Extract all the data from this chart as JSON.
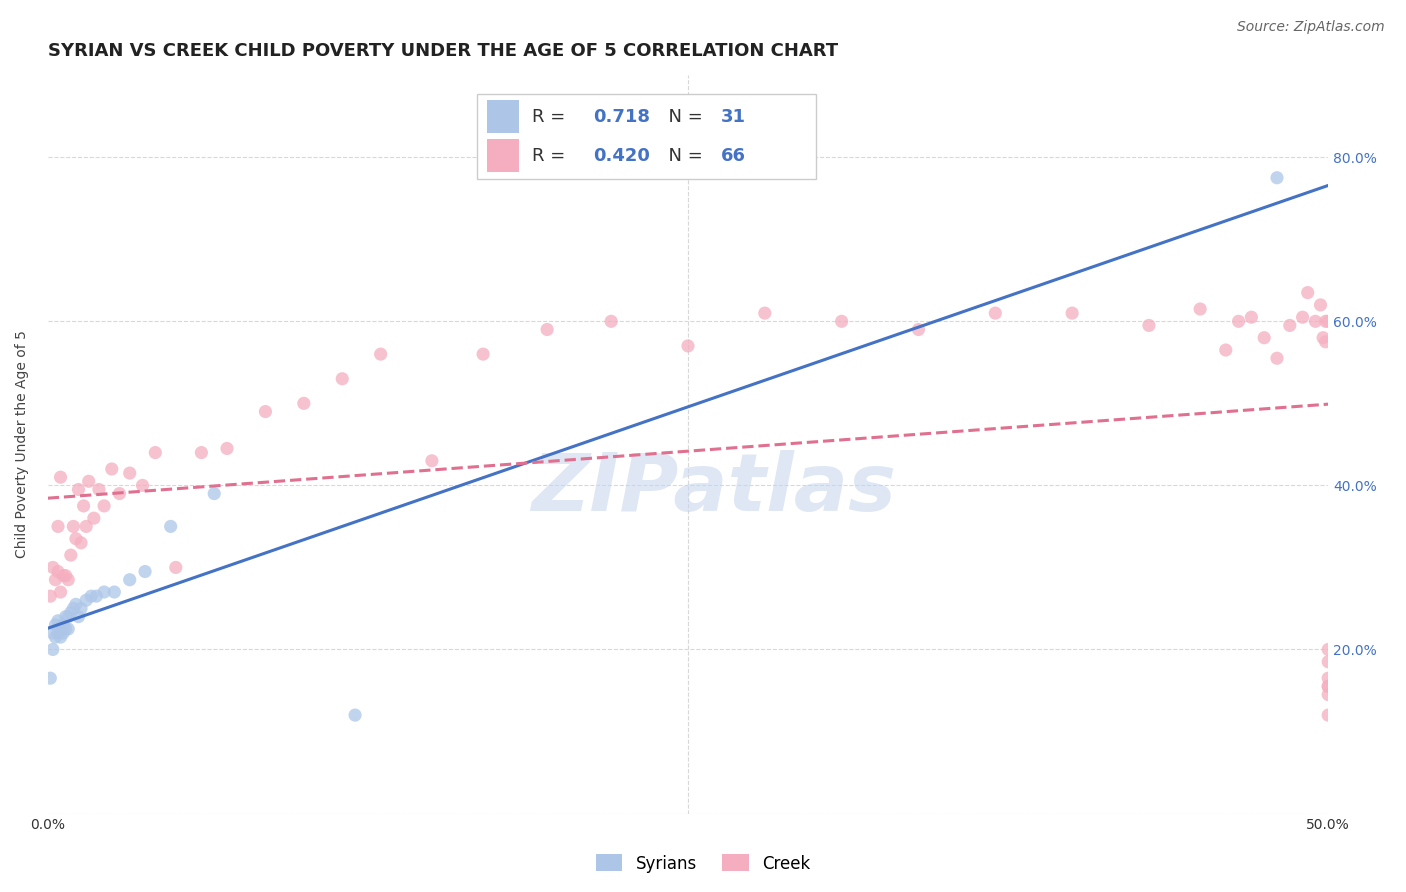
{
  "title": "SYRIAN VS CREEK CHILD POVERTY UNDER THE AGE OF 5 CORRELATION CHART",
  "source": "Source: ZipAtlas.com",
  "ylabel": "Child Poverty Under the Age of 5",
  "xlim": [
    0.0,
    0.5
  ],
  "ylim": [
    0.0,
    0.9
  ],
  "x_tick_positions": [
    0.0,
    0.05,
    0.1,
    0.15,
    0.2,
    0.25,
    0.3,
    0.35,
    0.4,
    0.45,
    0.5
  ],
  "x_tick_labels": [
    "0.0%",
    "",
    "",
    "",
    "",
    "",
    "",
    "",
    "",
    "",
    "50.0%"
  ],
  "y_tick_positions": [
    0.0,
    0.2,
    0.4,
    0.6,
    0.8
  ],
  "y_tick_labels": [
    "",
    "20.0%",
    "40.0%",
    "60.0%",
    "80.0%"
  ],
  "syrians_R": "0.718",
  "syrians_N": "31",
  "creek_R": "0.420",
  "creek_N": "66",
  "syrians_color": "#adc6e8",
  "creek_color": "#f5aec0",
  "syrians_line_color": "#4472c4",
  "creek_line_color": "#e07090",
  "legend_label_syrians": "Syrians",
  "legend_label_creek": "Creek",
  "syrians_x": [
    0.001,
    0.002,
    0.002,
    0.003,
    0.003,
    0.004,
    0.004,
    0.005,
    0.005,
    0.006,
    0.006,
    0.007,
    0.007,
    0.008,
    0.008,
    0.009,
    0.01,
    0.011,
    0.012,
    0.013,
    0.015,
    0.017,
    0.019,
    0.022,
    0.026,
    0.032,
    0.038,
    0.048,
    0.065,
    0.12,
    0.48
  ],
  "syrians_y": [
    0.165,
    0.2,
    0.22,
    0.215,
    0.23,
    0.22,
    0.235,
    0.225,
    0.215,
    0.23,
    0.22,
    0.24,
    0.225,
    0.225,
    0.24,
    0.245,
    0.25,
    0.255,
    0.24,
    0.25,
    0.26,
    0.265,
    0.265,
    0.27,
    0.27,
    0.285,
    0.295,
    0.35,
    0.39,
    0.12,
    0.775
  ],
  "creek_x": [
    0.001,
    0.002,
    0.003,
    0.004,
    0.004,
    0.005,
    0.005,
    0.006,
    0.007,
    0.008,
    0.009,
    0.01,
    0.011,
    0.012,
    0.013,
    0.014,
    0.015,
    0.016,
    0.018,
    0.02,
    0.022,
    0.025,
    0.028,
    0.032,
    0.037,
    0.042,
    0.05,
    0.06,
    0.07,
    0.085,
    0.1,
    0.115,
    0.13,
    0.15,
    0.17,
    0.195,
    0.22,
    0.25,
    0.28,
    0.31,
    0.34,
    0.37,
    0.4,
    0.43,
    0.45,
    0.46,
    0.465,
    0.47,
    0.475,
    0.48,
    0.485,
    0.49,
    0.492,
    0.495,
    0.497,
    0.498,
    0.499,
    0.499,
    0.5,
    0.5,
    0.5,
    0.5,
    0.5,
    0.5,
    0.5,
    0.5
  ],
  "creek_y": [
    0.265,
    0.3,
    0.285,
    0.295,
    0.35,
    0.27,
    0.41,
    0.29,
    0.29,
    0.285,
    0.315,
    0.35,
    0.335,
    0.395,
    0.33,
    0.375,
    0.35,
    0.405,
    0.36,
    0.395,
    0.375,
    0.42,
    0.39,
    0.415,
    0.4,
    0.44,
    0.3,
    0.44,
    0.445,
    0.49,
    0.5,
    0.53,
    0.56,
    0.43,
    0.56,
    0.59,
    0.6,
    0.57,
    0.61,
    0.6,
    0.59,
    0.61,
    0.61,
    0.595,
    0.615,
    0.565,
    0.6,
    0.605,
    0.58,
    0.555,
    0.595,
    0.605,
    0.635,
    0.6,
    0.62,
    0.58,
    0.6,
    0.575,
    0.12,
    0.185,
    0.145,
    0.155,
    0.165,
    0.155,
    0.6,
    0.2
  ],
  "background_color": "#ffffff",
  "grid_color": "#d8d8d8",
  "watermark_text": "ZIPatlas",
  "watermark_color": "#c5d5ee",
  "title_fontsize": 13,
  "source_fontsize": 10,
  "axis_label_fontsize": 10,
  "tick_fontsize": 10,
  "legend_fontsize": 13
}
